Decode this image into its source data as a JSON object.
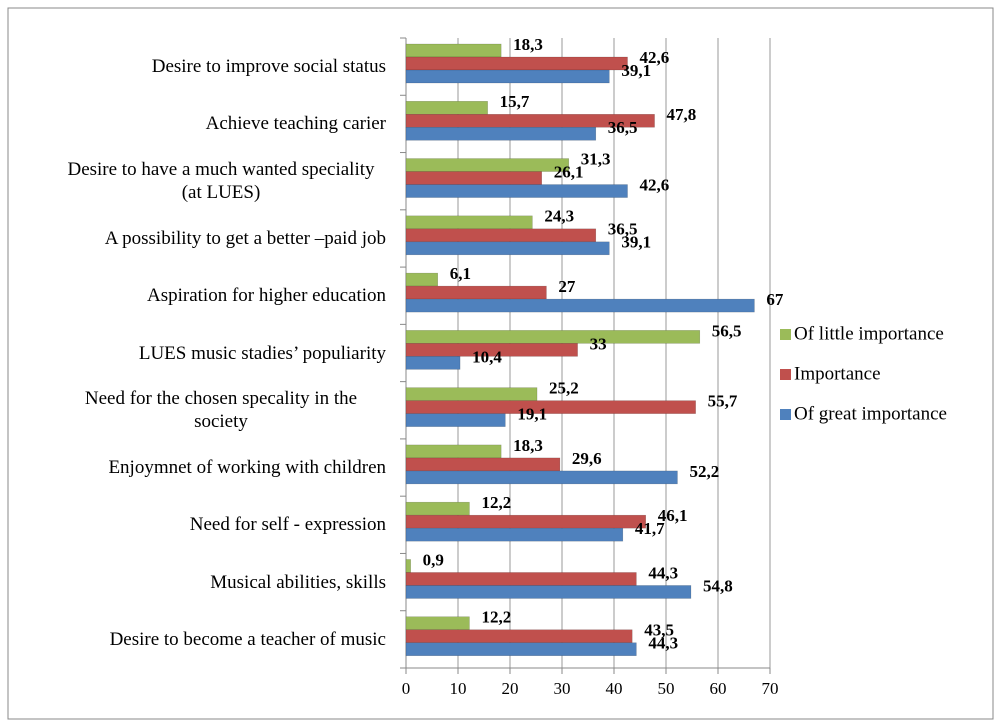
{
  "chart_data": {
    "type": "hbar",
    "categories": [
      "Desire to improve social status",
      "Achieve teaching carier",
      "Desire to have a much wanted speciality  (at LUES)",
      "A possibility to get a better –paid job",
      "Aspiration for higher education",
      "LUES music stadies’ populiarity",
      "Need for the chosen specality in the society",
      "Enjoymnet of working with children",
      "Need for self - expression",
      "Musical abilities, skills",
      "Desire to become a teacher of music"
    ],
    "series": [
      {
        "name": "Of little importance",
        "color": "#9bbb59",
        "values": [
          18.3,
          15.7,
          31.3,
          24.3,
          6.1,
          56.5,
          25.2,
          18.3,
          12.2,
          0.9,
          12.2
        ],
        "value_labels": [
          "18,3",
          "15,7",
          "31,3",
          "24,3",
          "6,1",
          "56,5",
          "25,2",
          "18,3",
          "12,2",
          "0,9",
          "12,2"
        ]
      },
      {
        "name": "Importance",
        "color": "#c0504d",
        "values": [
          42.6,
          47.8,
          26.1,
          36.5,
          27,
          33,
          55.7,
          29.6,
          46.1,
          44.3,
          43.5
        ],
        "value_labels": [
          "42,6",
          "47,8",
          "26,1",
          "36,5",
          "27",
          "33",
          "55,7",
          "29,6",
          "46,1",
          "44,3",
          "43,5"
        ]
      },
      {
        "name": "Of great importance",
        "color": "#4f81bd",
        "values": [
          39.1,
          36.5,
          42.6,
          39.1,
          67,
          10.4,
          19.1,
          52.2,
          41.7,
          54.8,
          44.3
        ],
        "value_labels": [
          "39,1",
          "36,5",
          "42,6",
          "39,1",
          "67",
          "10,4",
          "19,1",
          "52,2",
          "41,7",
          "54,8",
          "44,3"
        ]
      }
    ],
    "xlim": [
      0,
      70
    ],
    "xticks": [
      0,
      10,
      20,
      30,
      40,
      50,
      60,
      70
    ],
    "grid": true,
    "legend": "right"
  }
}
